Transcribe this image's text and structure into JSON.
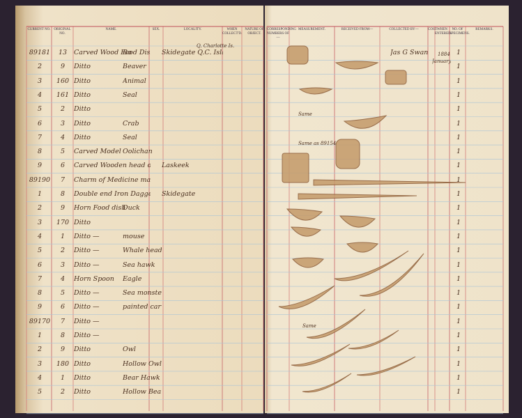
{
  "header": {
    "columns": [
      "Current No.",
      "Original No.",
      "Name.",
      "Sex.",
      "Locality.",
      "When Collect'd.",
      "Nature of Object.",
      "Corresponding Numbers of—",
      "Measurement.",
      "Received from—",
      "Collected by—",
      "Cost.",
      "When Entered.",
      "No. of Specimens.",
      "Remarks."
    ]
  },
  "rows": [
    {
      "current": "89181",
      "original": "13",
      "name": "Carved Wood Food Dish",
      "description": "Bo",
      "locality": "Skidegate Q.C. Islands",
      "collector": "Jas G Swan",
      "specimens": "1"
    },
    {
      "current": "2",
      "original": "9",
      "name": "Ditto",
      "description": "Beaver",
      "specimens": "1"
    },
    {
      "current": "3",
      "original": "160",
      "name": "Ditto",
      "description": "Animal",
      "specimens": "1"
    },
    {
      "current": "4",
      "original": "161",
      "name": "Ditto",
      "description": "Seal",
      "specimens": "1"
    },
    {
      "current": "5",
      "original": "2",
      "name": "Ditto",
      "specimens": "1"
    },
    {
      "current": "6",
      "original": "3",
      "name": "Ditto",
      "description": "Crab",
      "specimens": "1"
    },
    {
      "current": "7",
      "original": "4",
      "name": "Ditto",
      "description": "Seal",
      "specimens": "1"
    },
    {
      "current": "8",
      "original": "5",
      "name": "Carved Model",
      "description": "Oolichan",
      "specimens": "1"
    },
    {
      "current": "9",
      "original": "6",
      "name": "Carved Wooden head ornament",
      "locality": "Laskeek",
      "specimens": "1"
    },
    {
      "current": "89190",
      "original": "7",
      "name": "Charm of Medicine man",
      "specimens": "1"
    },
    {
      "current": "1",
      "original": "8",
      "name": "Double end Iron Dagger",
      "locality": "Skidegate",
      "specimens": "1"
    },
    {
      "current": "2",
      "original": "9",
      "name": "Horn Food dish",
      "description": "Duck",
      "specimens": "1"
    },
    {
      "current": "3",
      "original": "170",
      "name": "Ditto",
      "specimens": "1"
    },
    {
      "current": "4",
      "original": "1",
      "name": "Ditto —",
      "description": "mouse",
      "specimens": "1"
    },
    {
      "current": "5",
      "original": "2",
      "name": "Ditto —",
      "description": "Whale head",
      "specimens": "1"
    },
    {
      "current": "6",
      "original": "3",
      "name": "Ditto —",
      "description": "Sea hawk",
      "specimens": "1"
    },
    {
      "current": "7",
      "original": "4",
      "name": "Horn Spoon",
      "description": "Eagle",
      "specimens": "1"
    },
    {
      "current": "8",
      "original": "5",
      "name": "Ditto —",
      "description": "Sea monster",
      "specimens": "1"
    },
    {
      "current": "9",
      "original": "6",
      "name": "Ditto —",
      "description": "painted carved",
      "specimens": "1"
    },
    {
      "current": "89170",
      "original": "7",
      "name": "Ditto —",
      "specimens": "1"
    },
    {
      "current": "1",
      "original": "8",
      "name": "Ditto —",
      "specimens": "1"
    },
    {
      "current": "2",
      "original": "9",
      "name": "Ditto",
      "description": "Owl",
      "specimens": "1"
    },
    {
      "current": "3",
      "original": "180",
      "name": "Ditto",
      "description": "Hollow Owl",
      "specimens": "1"
    },
    {
      "current": "4",
      "original": "1",
      "name": "Ditto",
      "description": "Bear Hawk",
      "specimens": "1"
    },
    {
      "current": "5",
      "original": "2",
      "name": "Ditto",
      "description": "Hollow Bear",
      "specimens": "1"
    }
  ],
  "notes": [
    "Q. Charlotte Is.",
    "1884",
    "January",
    "Same",
    "Same as 89154",
    "Same"
  ]
}
